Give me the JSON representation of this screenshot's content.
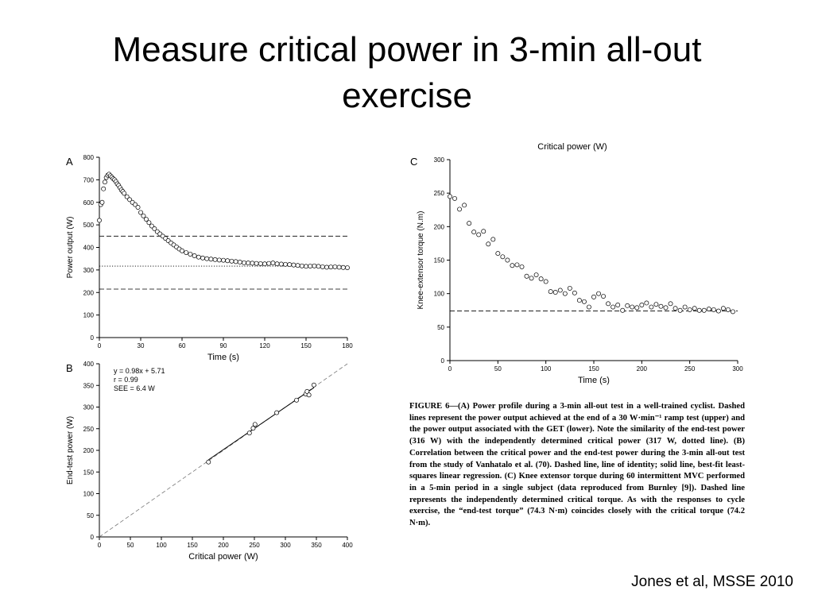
{
  "slide": {
    "title": "Measure critical power in 3-min all-out exercise",
    "citation": "Jones et al, MSSE 2010"
  },
  "caption": {
    "lead": "FIGURE 6",
    "text": "—(A) Power profile during a 3-min all-out test in a well-trained cyclist. Dashed lines represent the power output achieved at the end of a 30 W·min⁻¹ ramp test (upper) and the power output associated with the GET (lower). Note the similarity of the end-test power (316 W) with the independently determined critical power (317 W, dotted line). (B) Correlation between the critical power and the end-test power during the 3-min all-out test from the study of Vanhatalo et al. (70). Dashed line, line of identity; solid line, best-fit least-squares linear regression. (C) Knee extensor torque during 60 intermittent MVC performed in a 5-min period in a single subject (data reproduced from Burnley [9]). Dashed line represents the independently determined critical torque. As with the responses to cycle exercise, the “end-test torque” (74.3 N·m) coincides closely with the critical torque (74.2 N·m)."
  },
  "chart_data": [
    {
      "panel": "A",
      "type": "scatter",
      "xlabel": "Time (s)",
      "ylabel": "Power output (W)",
      "xlim": [
        0,
        180
      ],
      "ylim": [
        0,
        800
      ],
      "xticks": [
        0,
        30,
        60,
        90,
        120,
        150,
        180
      ],
      "yticks": [
        0,
        100,
        200,
        300,
        400,
        500,
        600,
        700,
        800
      ],
      "reference_lines": [
        {
          "name": "ramp test end power",
          "style": "dashed",
          "y": 450
        },
        {
          "name": "critical power",
          "style": "dotted",
          "y": 317
        },
        {
          "name": "GET power",
          "style": "dashed",
          "y": 215
        }
      ],
      "x": [
        0,
        1,
        2,
        3,
        4,
        5,
        6,
        7,
        8,
        9,
        10,
        11,
        12,
        13,
        14,
        15,
        16,
        17,
        18,
        20,
        22,
        24,
        26,
        28,
        30,
        32,
        34,
        36,
        38,
        40,
        42,
        44,
        46,
        48,
        50,
        52,
        54,
        56,
        58,
        60,
        63,
        66,
        69,
        72,
        75,
        78,
        81,
        84,
        87,
        90,
        93,
        96,
        99,
        102,
        105,
        108,
        111,
        114,
        117,
        120,
        123,
        126,
        129,
        132,
        135,
        138,
        141,
        144,
        147,
        150,
        153,
        156,
        159,
        162,
        165,
        168,
        171,
        174,
        177,
        180
      ],
      "y": [
        520,
        590,
        600,
        660,
        690,
        710,
        720,
        725,
        718,
        712,
        705,
        700,
        692,
        682,
        675,
        665,
        655,
        648,
        640,
        625,
        612,
        600,
        590,
        578,
        555,
        540,
        525,
        510,
        495,
        483,
        470,
        460,
        450,
        440,
        430,
        420,
        411,
        402,
        393,
        385,
        377,
        370,
        363,
        357,
        353,
        350,
        348,
        346,
        344,
        343,
        341,
        339,
        337,
        335,
        332,
        331,
        330,
        329,
        328,
        327,
        329,
        331,
        327,
        326,
        325,
        324,
        322,
        320,
        318,
        316,
        317,
        318,
        316,
        314,
        312,
        313,
        314,
        312,
        311,
        310
      ]
    },
    {
      "panel": "B",
      "type": "scatter",
      "xlabel": "Critical power (W)",
      "ylabel": "End-test power (W)",
      "xlim": [
        0,
        400
      ],
      "ylim": [
        0,
        400
      ],
      "xticks": [
        0,
        50,
        100,
        150,
        200,
        250,
        300,
        350,
        400
      ],
      "yticks": [
        0,
        50,
        100,
        150,
        200,
        250,
        300,
        350,
        400
      ],
      "annotations": [
        "y = 0.98x + 5.71",
        "r = 0.99",
        "SEE = 6.4 W"
      ],
      "x": [
        176,
        242,
        248,
        251,
        286,
        318,
        333,
        335,
        338,
        346
      ],
      "y": [
        173,
        240,
        251,
        260,
        287,
        316,
        330,
        336,
        328,
        351
      ],
      "regression": {
        "slope": 0.98,
        "intercept": 5.71
      }
    },
    {
      "panel": "C",
      "type": "scatter",
      "title": "Critical power (W)",
      "xlabel": "Time (s)",
      "ylabel": "Knee-extensor torque (N.m)",
      "xlim": [
        0,
        300
      ],
      "ylim": [
        0,
        300
      ],
      "xticks": [
        0,
        50,
        100,
        150,
        200,
        250,
        300
      ],
      "yticks": [
        0,
        50,
        100,
        150,
        200,
        250,
        300
      ],
      "reference_lines": [
        {
          "name": "critical torque",
          "style": "dashed",
          "y": 74.2
        }
      ],
      "x": [
        0,
        5,
        10,
        15,
        20,
        25,
        30,
        35,
        40,
        45,
        50,
        55,
        60,
        65,
        70,
        75,
        80,
        85,
        90,
        95,
        100,
        105,
        110,
        115,
        120,
        125,
        130,
        135,
        140,
        145,
        150,
        155,
        160,
        165,
        170,
        175,
        180,
        185,
        190,
        195,
        200,
        205,
        210,
        215,
        220,
        225,
        230,
        235,
        240,
        245,
        250,
        255,
        260,
        265,
        270,
        275,
        280,
        285,
        290,
        295
      ],
      "y": [
        245,
        242,
        226,
        232,
        205,
        192,
        188,
        193,
        174,
        181,
        160,
        155,
        150,
        142,
        143,
        140,
        126,
        123,
        128,
        122,
        118,
        103,
        102,
        105,
        100,
        108,
        101,
        90,
        88,
        80,
        95,
        100,
        96,
        85,
        80,
        83,
        75,
        82,
        80,
        79,
        83,
        86,
        80,
        84,
        81,
        79,
        85,
        78,
        75,
        80,
        76,
        78,
        75,
        75,
        77,
        76,
        74,
        78,
        76,
        73
      ]
    }
  ]
}
